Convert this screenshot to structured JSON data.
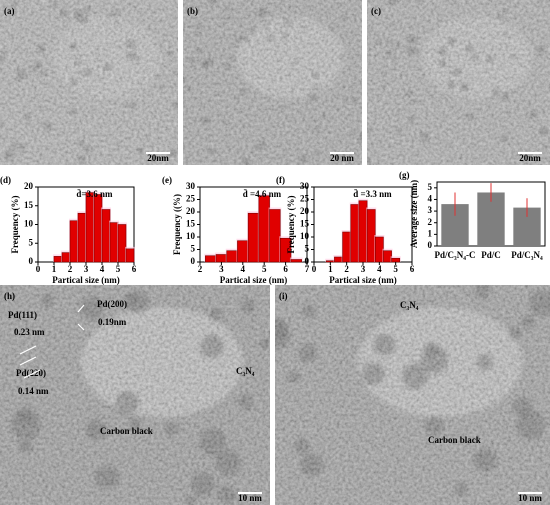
{
  "images": [
    {
      "label": "(a)",
      "scale_bar": "20nm"
    },
    {
      "label": "(b)",
      "scale_bar": "20 nm"
    },
    {
      "label": "(c)",
      "scale_bar": "20nm"
    },
    {
      "label": "(h)",
      "scale_bar": "10 nm",
      "annotations": [
        "Pd(111)",
        "0.23 nm",
        "Pd(200)",
        "0.19nm",
        "Pd(220)",
        "0.14 nm",
        "C₃N₄",
        "Carbon black"
      ]
    },
    {
      "label": "(i)",
      "scale_bar": "10 nm",
      "annotations": [
        "C₃N₄",
        "Carbon black"
      ]
    }
  ],
  "chart_data": [
    {
      "type": "histogram",
      "panel": "(d)",
      "ylabel": "Frequency (%)",
      "xlabel": "Partical size (nm)",
      "annotation": "d̄=3.6 nm",
      "bins": [
        1,
        1.5,
        2,
        2.5,
        3,
        3.5,
        4,
        4.5,
        5,
        5.5,
        6
      ],
      "values": [
        1.5,
        2.5,
        11,
        13,
        18.5,
        18,
        14,
        10.5,
        10,
        3.5
      ],
      "color": "#e00000",
      "xlim": [
        0,
        6
      ],
      "xticks": [
        0,
        1,
        2,
        3,
        4,
        5,
        6
      ],
      "ylim": [
        0,
        20
      ],
      "yticks": [
        0,
        5,
        10,
        15,
        20
      ]
    },
    {
      "type": "histogram",
      "panel": "(e)",
      "ylabel": "Frequency ((%)",
      "xlabel": "Partical size (nm)",
      "annotation": "d̄ =4.6 nm",
      "bins": [
        2.25,
        2.75,
        3.25,
        3.75,
        4.25,
        4.75,
        5.25,
        5.75,
        6.25,
        6.75
      ],
      "values": [
        2.5,
        3,
        4.5,
        8.5,
        19.5,
        26.5,
        21,
        9.5,
        1
      ],
      "color": "#e00000",
      "xlim": [
        2,
        7
      ],
      "xticks": [
        2,
        3,
        4,
        5,
        6,
        7
      ],
      "ylim": [
        0,
        30
      ],
      "yticks": [
        0,
        5,
        10,
        15,
        20,
        25,
        30
      ]
    },
    {
      "type": "histogram",
      "panel": "(f)",
      "ylabel": "Frequency (%)",
      "xlabel": "Partical size (nm)",
      "annotation": "d̄ =3.3 nm",
      "bins": [
        0.75,
        1.25,
        1.75,
        2.25,
        2.75,
        3.25,
        3.75,
        4.25,
        4.75,
        5.25
      ],
      "values": [
        0.5,
        2,
        12,
        23,
        24.5,
        21,
        10,
        4.5,
        1.5
      ],
      "color": "#e00000",
      "xlim": [
        0,
        6
      ],
      "xticks": [
        0,
        1,
        2,
        3,
        4,
        5,
        6
      ],
      "ylim": [
        0,
        30
      ],
      "yticks": [
        0,
        5,
        10,
        15,
        20,
        25,
        30
      ]
    },
    {
      "type": "bar",
      "panel": "(g)",
      "ylabel": "Average size (nm)",
      "categories": [
        "Pd/C₃N₄-C",
        "Pd/C",
        "Pd/C₃N₄"
      ],
      "values": [
        3.6,
        4.6,
        3.3
      ],
      "errors": [
        1.0,
        0.8,
        0.8
      ],
      "color": "#7f7f7f",
      "error_color": "#e03030",
      "ylim": [
        0,
        5.5
      ],
      "yticks": [
        0,
        1,
        2,
        3,
        4,
        5
      ]
    }
  ]
}
